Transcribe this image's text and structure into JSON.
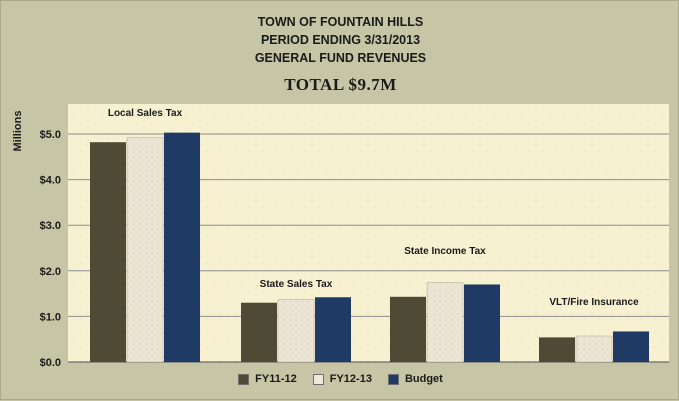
{
  "chart_data": {
    "type": "bar",
    "title": [
      "TOWN OF FOUNTAIN HILLS",
      "PERIOD ENDING 3/31/2013",
      "GENERAL FUND REVENUES"
    ],
    "subtitle": "TOTAL $9.7M",
    "ylabel": "Millions",
    "xlabel": "",
    "ylim": [
      0,
      5.5
    ],
    "yticks": [
      0,
      1,
      2,
      3,
      4,
      5
    ],
    "ytick_labels": [
      "$0.0",
      "$1.0",
      "$2.0",
      "$3.0",
      "$4.0",
      "$5.0"
    ],
    "grid": true,
    "legend_position": "bottom",
    "categories": [
      "Local Sales Tax",
      "State Sales Tax",
      "State Income Tax",
      "VLT/Fire Insurance"
    ],
    "series": [
      {
        "name": "FY11-12",
        "color": "#4f4a36",
        "values": [
          4.82,
          1.3,
          1.43,
          0.54
        ]
      },
      {
        "name": "FY12-13",
        "color": "#ece6d6",
        "values": [
          4.92,
          1.37,
          1.74,
          0.57
        ]
      },
      {
        "name": "Budget",
        "color": "#1f3a64",
        "values": [
          5.03,
          1.42,
          1.7,
          0.67
        ]
      }
    ]
  }
}
